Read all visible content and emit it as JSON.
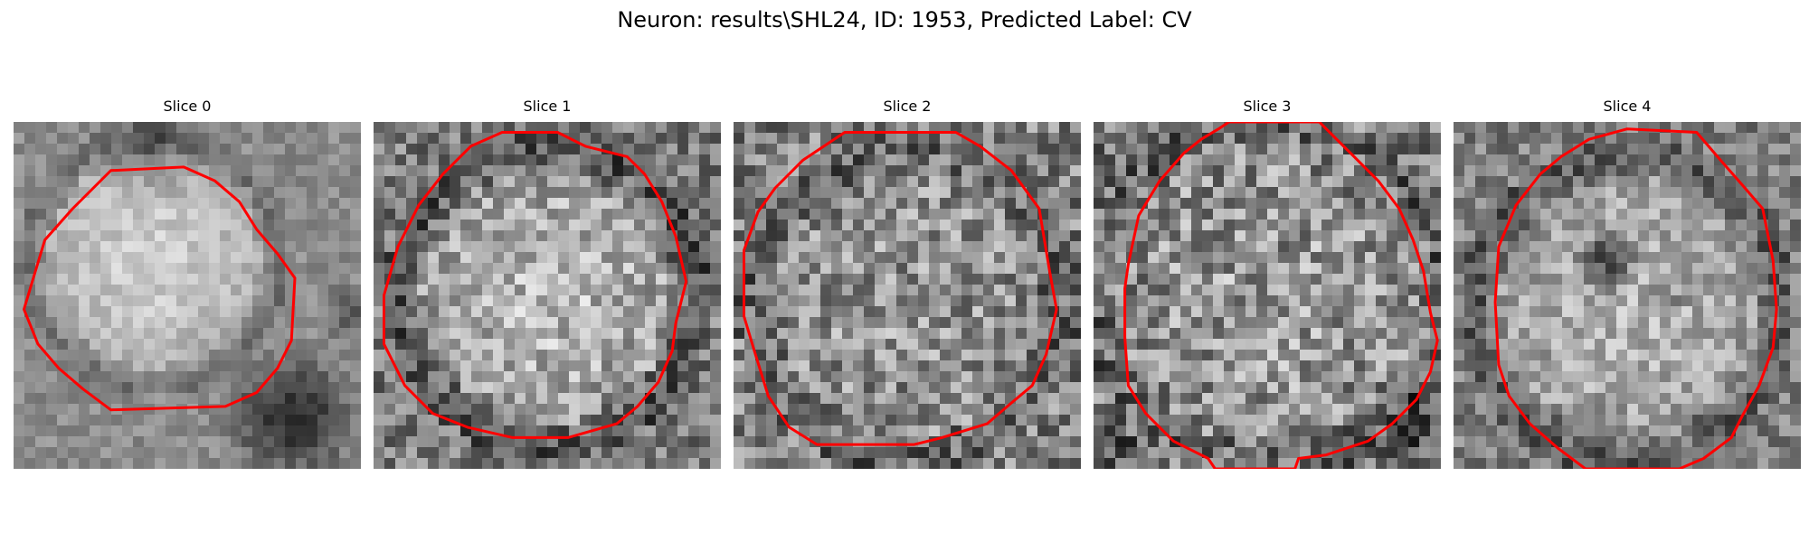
{
  "figure": {
    "title": "Neuron: results\\SHL24, ID: 1953, Predicted Label: CV"
  },
  "colors": {
    "contour": "#ff0000",
    "background": "#ffffff"
  },
  "panels": [
    {
      "title": "Slice 0"
    },
    {
      "title": "Slice 1"
    },
    {
      "title": "Slice 2"
    },
    {
      "title": "Slice 3"
    },
    {
      "title": "Slice 4"
    }
  ]
}
